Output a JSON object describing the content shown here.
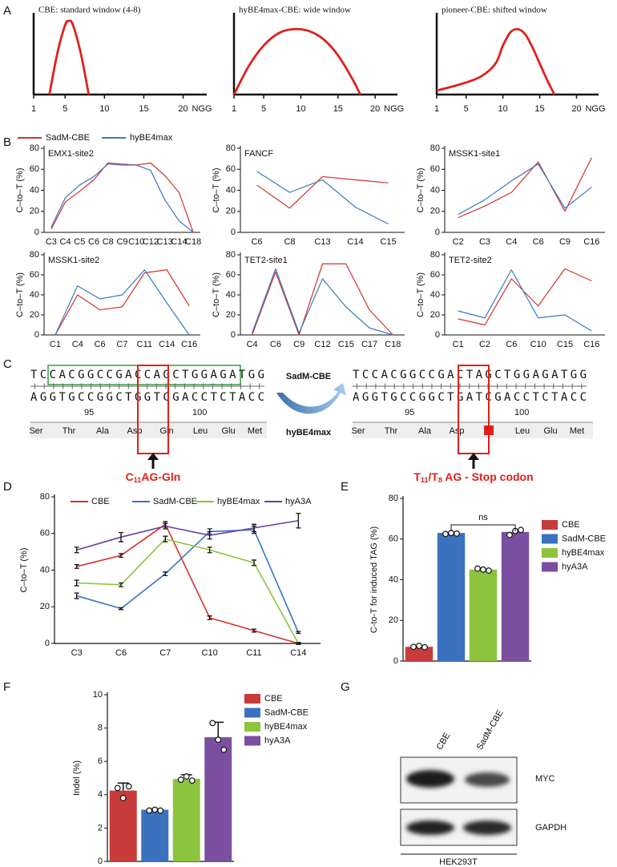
{
  "panel_labels": [
    "A",
    "B",
    "C",
    "D",
    "E",
    "F",
    "G"
  ],
  "chart_data": [
    {
      "type": "curve",
      "title": "CBE: standard window (4-8)",
      "x": [
        3,
        4,
        5,
        5.5,
        6,
        7,
        8
      ],
      "values": [
        0,
        50,
        85,
        90,
        85,
        50,
        0
      ],
      "color": "#e0201b",
      "xlim": [
        1,
        23
      ],
      "xticks": [
        1,
        5,
        10,
        15,
        20
      ],
      "xlabel": "NGG",
      "ylim": [
        0,
        100
      ]
    },
    {
      "type": "curve",
      "title": "hyBE4max-CBE: wide window",
      "x": [
        1,
        3,
        5,
        7,
        9,
        11,
        13,
        15,
        17,
        18
      ],
      "values": [
        0,
        35,
        60,
        75,
        80,
        78,
        68,
        48,
        18,
        0
      ],
      "color": "#e0201b",
      "xlim": [
        1,
        23
      ],
      "xticks": [
        1,
        5,
        10,
        15,
        20
      ],
      "xlabel": "NGG",
      "ylim": [
        0,
        100
      ]
    },
    {
      "type": "curve",
      "title": "pioneer-CBE: shifted window",
      "x": [
        1,
        4,
        7,
        9,
        10,
        11,
        12,
        13,
        14,
        15,
        16,
        17
      ],
      "values": [
        5,
        12,
        22,
        38,
        60,
        76,
        80,
        74,
        58,
        38,
        18,
        0
      ],
      "color": "#e0201b",
      "xlim": [
        1,
        23
      ],
      "xticks": [
        1,
        5,
        10,
        15,
        20
      ],
      "xlabel": "NGG",
      "ylim": [
        0,
        100
      ]
    },
    {
      "type": "line",
      "title": "EMX1-site2",
      "ylabel": "C–to–T (%)",
      "categories": [
        "C3",
        "C4",
        "C5",
        "C6",
        "C8",
        "C9",
        "C10",
        "C12",
        "C13",
        "C14",
        "C18"
      ],
      "ylim": [
        0,
        80
      ],
      "yticks": [
        0,
        20,
        40,
        60,
        80
      ],
      "series": [
        {
          "name": "SadM-CBE",
          "color": "#d4312d",
          "values": [
            3,
            29,
            39,
            50,
            66,
            65,
            64,
            66,
            54,
            38,
            0
          ]
        },
        {
          "name": "hyBE4max",
          "color": "#3a78c4",
          "values": [
            5,
            33,
            45,
            53,
            65,
            64,
            64,
            59,
            31,
            11,
            0
          ]
        }
      ]
    },
    {
      "type": "line",
      "title": "FANCF",
      "ylabel": "C–to–T (%)",
      "categories": [
        "C6",
        "C8",
        "C13",
        "C14",
        "C15"
      ],
      "ylim": [
        0,
        80
      ],
      "yticks": [
        0,
        20,
        40,
        60,
        80
      ],
      "series": [
        {
          "color": "#d4312d",
          "values": [
            45,
            23,
            53,
            50,
            47
          ]
        },
        {
          "color": "#3a78c4",
          "values": [
            58,
            38,
            50,
            24,
            8
          ]
        }
      ]
    },
    {
      "type": "line",
      "title": "MSSK1-site1",
      "ylabel": "C–to–T (%)",
      "categories": [
        "C2",
        "C3",
        "C4",
        "C6",
        "C9",
        "C16"
      ],
      "ylim": [
        0,
        80
      ],
      "yticks": [
        0,
        20,
        40,
        60,
        80
      ],
      "series": [
        {
          "color": "#d4312d",
          "values": [
            14,
            25,
            38,
            67,
            20,
            71
          ]
        },
        {
          "color": "#3a78c4",
          "values": [
            17,
            31,
            49,
            65,
            23,
            43
          ]
        }
      ]
    },
    {
      "type": "line",
      "title": "MSSK1-site2",
      "ylabel": "C–to–T (%)",
      "categories": [
        "C1",
        "C4",
        "C6",
        "C7",
        "C11",
        "C14",
        "C16"
      ],
      "ylim": [
        0,
        80
      ],
      "yticks": [
        0,
        20,
        40,
        60,
        80
      ],
      "series": [
        {
          "color": "#d4312d",
          "values": [
            0,
            40,
            25,
            28,
            62,
            65,
            29
          ]
        },
        {
          "color": "#3a78c4",
          "values": [
            0,
            49,
            36,
            40,
            65,
            32,
            0
          ]
        }
      ]
    },
    {
      "type": "line",
      "title": "TET2-site1",
      "ylabel": "C–to–T (%)",
      "categories": [
        "C4",
        "C6",
        "C9",
        "C12",
        "C15",
        "C17",
        "C18"
      ],
      "ylim": [
        0,
        80
      ],
      "yticks": [
        0,
        20,
        40,
        60,
        80
      ],
      "series": [
        {
          "color": "#d4312d",
          "values": [
            0,
            63,
            0,
            71,
            71,
            25,
            0
          ]
        },
        {
          "color": "#3a78c4",
          "values": [
            2,
            66,
            2,
            56,
            28,
            7,
            0
          ]
        }
      ]
    },
    {
      "type": "line",
      "title": "TET2-site2",
      "ylabel": "C–to–T (%)",
      "categories": [
        "C1",
        "C2",
        "C6",
        "C10",
        "C15",
        "C16"
      ],
      "ylim": [
        0,
        80
      ],
      "yticks": [
        0,
        20,
        40,
        60,
        80
      ],
      "series": [
        {
          "color": "#d4312d",
          "values": [
            16,
            10,
            56,
            29,
            66,
            54
          ]
        },
        {
          "color": "#3a78c4",
          "values": [
            24,
            17,
            65,
            17,
            20,
            4
          ]
        }
      ]
    },
    {
      "type": "line",
      "ylabel": "C–to–T (%)",
      "categories": [
        "C3",
        "C6",
        "C7",
        "C10",
        "C11",
        "C14"
      ],
      "ylim": [
        0,
        80
      ],
      "yticks": [
        0,
        20,
        40,
        60,
        80
      ],
      "series": [
        {
          "name": "CBE",
          "color": "#d4312d",
          "values": [
            42,
            48,
            65,
            14,
            7,
            0
          ],
          "errors": [
            1,
            1,
            1.5,
            1,
            0.8,
            0.5
          ]
        },
        {
          "name": "SadM-CBE",
          "color": "#3a72c0",
          "values": [
            26,
            19,
            38,
            61,
            62,
            6
          ],
          "errors": [
            1.5,
            0.5,
            1,
            1.5,
            2,
            0.5
          ]
        },
        {
          "name": "hyBE4max",
          "color": "#8cc43e",
          "values": [
            33,
            32,
            57,
            51,
            44,
            0
          ],
          "errors": [
            1.5,
            1,
            1.5,
            1.5,
            1.5,
            0.5
          ]
        },
        {
          "name": "hyA3A",
          "color": "#6a3f9e",
          "values": [
            51,
            58,
            64,
            59,
            63,
            67
          ],
          "errors": [
            1.5,
            2.5,
            1.5,
            2,
            2,
            4
          ]
        }
      ]
    },
    {
      "type": "bar",
      "ylabel": "C-to-T for induced TAG (%)",
      "categories": [
        "CBE",
        "SadM-CBE",
        "hyBE4max",
        "hyA3A"
      ],
      "colors": [
        "#c83b3b",
        "#3a72c0",
        "#8cc43e",
        "#7b4f9f"
      ],
      "values": [
        7,
        63,
        45,
        63.5
      ],
      "points": [
        [
          7,
          7.5,
          6.8
        ],
        [
          62.5,
          63,
          62.7
        ],
        [
          45.5,
          45,
          44.5
        ],
        [
          62,
          64,
          64.5
        ]
      ],
      "annotation": "ns",
      "ylim": [
        0,
        80
      ],
      "yticks": [
        0,
        20,
        40,
        60,
        80
      ]
    },
    {
      "type": "bar",
      "ylabel": "Indel (%)",
      "categories": [
        "CBE",
        "SadM-CBE",
        "hyBE4max",
        "hyA3A"
      ],
      "colors": [
        "#c83b3b",
        "#3a72c0",
        "#8cc43e",
        "#7b4f9f"
      ],
      "values": [
        4.25,
        3.1,
        4.95,
        7.45
      ],
      "errors": [
        0.45,
        0.05,
        0.25,
        0.9
      ],
      "points": [
        [
          4.4,
          3.8,
          4.5
        ],
        [
          3.05,
          3.1,
          3.05
        ],
        [
          4.9,
          5.1,
          4.85
        ],
        [
          8.3,
          7.3,
          6.7
        ]
      ],
      "ylim": [
        0,
        10
      ],
      "yticks": [
        0,
        2,
        4,
        6,
        8,
        10
      ]
    }
  ],
  "sequence": {
    "left": {
      "top": "TCCACGGCCGACCAGCTGGAGATGG",
      "bottom": "AGGTGCCGGCTGGTCGACCTCTACC",
      "numbers": [
        "95",
        "100"
      ],
      "amino_acids": [
        "Ser",
        "Thr",
        "Ala",
        "Asp",
        "Gln",
        "Leu",
        "Glu",
        "Met"
      ],
      "label": [
        "C",
        "11",
        "AG-Gln"
      ]
    },
    "right": {
      "top": "TCCACGGCCGACTAGCTGGAGATGG",
      "bottom": "AGGTGCCGGCTGATCGACCTCTACC",
      "numbers": [
        "95",
        "100"
      ],
      "amino_acids": [
        "Ser",
        "Thr",
        "Ala",
        "Asp",
        "*",
        "Leu",
        "Glu",
        "Met"
      ],
      "label": [
        "T",
        "11",
        "/T",
        "8",
        " AG - Stop codon"
      ]
    },
    "arrow_top": "SadM-CBE",
    "arrow_bottom": "hyBE4max"
  },
  "blot": {
    "lanes": [
      "CBE",
      "SadM-CBE"
    ],
    "rows": [
      "MYC",
      "GAPDH"
    ],
    "cell_line": "HEK293T"
  }
}
